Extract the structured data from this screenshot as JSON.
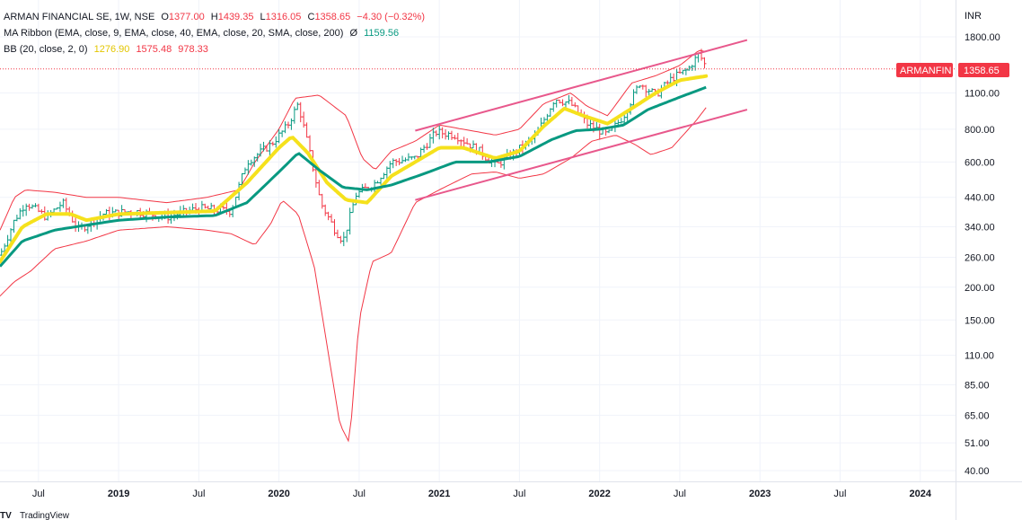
{
  "legend": {
    "line1": {
      "symbol": "ARMAN FINANCIAL SE, 1W, NSE",
      "o_label": "O",
      "o": "1377.00",
      "h_label": "H",
      "h": "1439.35",
      "l_label": "L",
      "l": "1316.05",
      "c_label": "C",
      "c": "1358.65",
      "change": "−4.30 (−0.32%)"
    },
    "line2": {
      "name": "MA Ribbon (EMA, close, 9, EMA, close, 40, EMA, close, 20, SMA, close, 200)",
      "icon": "Ø",
      "value": "1159.56"
    },
    "line3": {
      "name": "BB (20, close, 2, 0)",
      "basis": "1276.90",
      "upper": "1575.48",
      "lower": "978.33"
    }
  },
  "currency": "INR",
  "badge": {
    "ticker": "ARMANFIN",
    "price": "1358.65"
  },
  "colors": {
    "up": "#089981",
    "down": "#f23645",
    "ema9": "#f5e11c",
    "ema40": "#089981",
    "bb": "#f23645",
    "channel": "#e8588c",
    "axis_text": "#131722",
    "badge": "#f23645"
  },
  "footer": {
    "logo": "TV",
    "text": "TradingView"
  },
  "chart_data": {
    "type": "line",
    "title": "ARMAN FINANCIAL SE, 1W, NSE",
    "y_scale": "log",
    "ylim": [
      36,
      2100
    ],
    "y_ticks": [
      {
        "v": 1800,
        "label": "1800.00"
      },
      {
        "v": 1100,
        "label": "1100.00"
      },
      {
        "v": 800,
        "label": "800.00"
      },
      {
        "v": 600,
        "label": "600.00"
      },
      {
        "v": 440,
        "label": "440.00"
      },
      {
        "v": 340,
        "label": "340.00"
      },
      {
        "v": 260,
        "label": "260.00"
      },
      {
        "v": 200,
        "label": "200.00"
      },
      {
        "v": 150,
        "label": "150.00"
      },
      {
        "v": 110,
        "label": "110.00"
      },
      {
        "v": 85,
        "label": "85.00"
      },
      {
        "v": 65,
        "label": "65.00"
      },
      {
        "v": 51,
        "label": "51.00"
      },
      {
        "v": 40,
        "label": "40.00"
      }
    ],
    "xlim": [
      2018.26,
      2024.22
    ],
    "x_ticks": [
      {
        "t": 2018.5,
        "label": "Jul",
        "bold": false
      },
      {
        "t": 2019.0,
        "label": "2019",
        "bold": true
      },
      {
        "t": 2019.5,
        "label": "Jul",
        "bold": false
      },
      {
        "t": 2020.0,
        "label": "2020",
        "bold": true
      },
      {
        "t": 2020.5,
        "label": "Jul",
        "bold": false
      },
      {
        "t": 2021.0,
        "label": "2021",
        "bold": true
      },
      {
        "t": 2021.5,
        "label": "Jul",
        "bold": false
      },
      {
        "t": 2022.0,
        "label": "2022",
        "bold": true
      },
      {
        "t": 2022.5,
        "label": "Jul",
        "bold": false
      },
      {
        "t": 2023.0,
        "label": "2023",
        "bold": true
      },
      {
        "t": 2023.5,
        "label": "Jul",
        "bold": false
      },
      {
        "t": 2024.0,
        "label": "2024",
        "bold": true
      }
    ],
    "last_close": 1358.65,
    "price_keypoints": [
      {
        "t": 2018.26,
        "p": 265
      },
      {
        "t": 2018.35,
        "p": 360
      },
      {
        "t": 2018.42,
        "p": 420
      },
      {
        "t": 2018.55,
        "p": 370
      },
      {
        "t": 2018.65,
        "p": 420
      },
      {
        "t": 2018.75,
        "p": 330
      },
      {
        "t": 2018.9,
        "p": 380
      },
      {
        "t": 2019.1,
        "p": 390
      },
      {
        "t": 2019.3,
        "p": 370
      },
      {
        "t": 2019.5,
        "p": 400
      },
      {
        "t": 2019.7,
        "p": 390
      },
      {
        "t": 2019.8,
        "p": 600
      },
      {
        "t": 2019.95,
        "p": 700
      },
      {
        "t": 2020.05,
        "p": 820
      },
      {
        "t": 2020.12,
        "p": 1000
      },
      {
        "t": 2020.18,
        "p": 700
      },
      {
        "t": 2020.26,
        "p": 420
      },
      {
        "t": 2020.35,
        "p": 330
      },
      {
        "t": 2020.4,
        "p": 300
      },
      {
        "t": 2020.48,
        "p": 450
      },
      {
        "t": 2020.6,
        "p": 500
      },
      {
        "t": 2020.7,
        "p": 600
      },
      {
        "t": 2020.85,
        "p": 620
      },
      {
        "t": 2020.98,
        "p": 780
      },
      {
        "t": 2021.1,
        "p": 760
      },
      {
        "t": 2021.25,
        "p": 660
      },
      {
        "t": 2021.35,
        "p": 580
      },
      {
        "t": 2021.45,
        "p": 640
      },
      {
        "t": 2021.6,
        "p": 750
      },
      {
        "t": 2021.72,
        "p": 1050
      },
      {
        "t": 2021.82,
        "p": 1000
      },
      {
        "t": 2021.92,
        "p": 840
      },
      {
        "t": 2022.05,
        "p": 760
      },
      {
        "t": 2022.15,
        "p": 900
      },
      {
        "t": 2022.25,
        "p": 1200
      },
      {
        "t": 2022.35,
        "p": 1080
      },
      {
        "t": 2022.45,
        "p": 1250
      },
      {
        "t": 2022.55,
        "p": 1350
      },
      {
        "t": 2022.62,
        "p": 1550
      },
      {
        "t": 2022.67,
        "p": 1358.65
      }
    ],
    "bb_keypoints": {
      "upper": [
        {
          "t": 2018.26,
          "p": 330
        },
        {
          "t": 2018.35,
          "p": 440
        },
        {
          "t": 2018.42,
          "p": 470
        },
        {
          "t": 2018.6,
          "p": 460
        },
        {
          "t": 2018.8,
          "p": 440
        },
        {
          "t": 2019.0,
          "p": 440
        },
        {
          "t": 2019.3,
          "p": 420
        },
        {
          "t": 2019.55,
          "p": 440
        },
        {
          "t": 2019.75,
          "p": 470
        },
        {
          "t": 2019.85,
          "p": 600
        },
        {
          "t": 2020.0,
          "p": 800
        },
        {
          "t": 2020.1,
          "p": 1050
        },
        {
          "t": 2020.25,
          "p": 1080
        },
        {
          "t": 2020.42,
          "p": 900
        },
        {
          "t": 2020.52,
          "p": 620
        },
        {
          "t": 2020.6,
          "p": 560
        },
        {
          "t": 2020.7,
          "p": 660
        },
        {
          "t": 2020.85,
          "p": 720
        },
        {
          "t": 2021.0,
          "p": 830
        },
        {
          "t": 2021.2,
          "p": 790
        },
        {
          "t": 2021.35,
          "p": 760
        },
        {
          "t": 2021.5,
          "p": 800
        },
        {
          "t": 2021.65,
          "p": 1000
        },
        {
          "t": 2021.82,
          "p": 1100
        },
        {
          "t": 2021.92,
          "p": 980
        },
        {
          "t": 2022.05,
          "p": 900
        },
        {
          "t": 2022.2,
          "p": 1200
        },
        {
          "t": 2022.35,
          "p": 1280
        },
        {
          "t": 2022.5,
          "p": 1400
        },
        {
          "t": 2022.62,
          "p": 1600
        },
        {
          "t": 2022.67,
          "p": 1575.48
        }
      ],
      "lower": [
        {
          "t": 2018.26,
          "p": 185
        },
        {
          "t": 2018.35,
          "p": 210
        },
        {
          "t": 2018.45,
          "p": 230
        },
        {
          "t": 2018.6,
          "p": 280
        },
        {
          "t": 2018.8,
          "p": 300
        },
        {
          "t": 2019.0,
          "p": 330
        },
        {
          "t": 2019.3,
          "p": 340
        },
        {
          "t": 2019.55,
          "p": 330
        },
        {
          "t": 2019.7,
          "p": 320
        },
        {
          "t": 2019.85,
          "p": 290
        },
        {
          "t": 2019.95,
          "p": 350
        },
        {
          "t": 2020.02,
          "p": 430
        },
        {
          "t": 2020.12,
          "p": 380
        },
        {
          "t": 2020.22,
          "p": 240
        },
        {
          "t": 2020.3,
          "p": 120
        },
        {
          "t": 2020.38,
          "p": 60
        },
        {
          "t": 2020.44,
          "p": 51
        },
        {
          "t": 2020.5,
          "p": 150
        },
        {
          "t": 2020.58,
          "p": 250
        },
        {
          "t": 2020.7,
          "p": 270
        },
        {
          "t": 2020.85,
          "p": 420
        },
        {
          "t": 2021.0,
          "p": 470
        },
        {
          "t": 2021.2,
          "p": 540
        },
        {
          "t": 2021.35,
          "p": 550
        },
        {
          "t": 2021.5,
          "p": 520
        },
        {
          "t": 2021.65,
          "p": 540
        },
        {
          "t": 2021.82,
          "p": 620
        },
        {
          "t": 2021.95,
          "p": 720
        },
        {
          "t": 2022.1,
          "p": 760
        },
        {
          "t": 2022.22,
          "p": 700
        },
        {
          "t": 2022.32,
          "p": 640
        },
        {
          "t": 2022.45,
          "p": 680
        },
        {
          "t": 2022.6,
          "p": 860
        },
        {
          "t": 2022.67,
          "p": 978.33
        }
      ]
    },
    "ema40_keypoints": [
      {
        "t": 2018.26,
        "p": 240
      },
      {
        "t": 2018.4,
        "p": 300
      },
      {
        "t": 2018.6,
        "p": 330
      },
      {
        "t": 2018.8,
        "p": 345
      },
      {
        "t": 2019.0,
        "p": 360
      },
      {
        "t": 2019.3,
        "p": 370
      },
      {
        "t": 2019.6,
        "p": 375
      },
      {
        "t": 2019.8,
        "p": 420
      },
      {
        "t": 2020.0,
        "p": 550
      },
      {
        "t": 2020.12,
        "p": 650
      },
      {
        "t": 2020.25,
        "p": 560
      },
      {
        "t": 2020.4,
        "p": 480
      },
      {
        "t": 2020.55,
        "p": 470
      },
      {
        "t": 2020.7,
        "p": 490
      },
      {
        "t": 2020.9,
        "p": 540
      },
      {
        "t": 2021.1,
        "p": 600
      },
      {
        "t": 2021.3,
        "p": 600
      },
      {
        "t": 2021.5,
        "p": 630
      },
      {
        "t": 2021.7,
        "p": 730
      },
      {
        "t": 2021.85,
        "p": 790
      },
      {
        "t": 2022.0,
        "p": 800
      },
      {
        "t": 2022.15,
        "p": 830
      },
      {
        "t": 2022.3,
        "p": 950
      },
      {
        "t": 2022.5,
        "p": 1060
      },
      {
        "t": 2022.67,
        "p": 1159.56
      }
    ],
    "ema9_keypoints": [
      {
        "t": 2018.26,
        "p": 250
      },
      {
        "t": 2018.4,
        "p": 340
      },
      {
        "t": 2018.55,
        "p": 380
      },
      {
        "t": 2018.7,
        "p": 380
      },
      {
        "t": 2018.8,
        "p": 360
      },
      {
        "t": 2019.0,
        "p": 380
      },
      {
        "t": 2019.3,
        "p": 385
      },
      {
        "t": 2019.6,
        "p": 390
      },
      {
        "t": 2019.8,
        "p": 500
      },
      {
        "t": 2020.0,
        "p": 680
      },
      {
        "t": 2020.08,
        "p": 750
      },
      {
        "t": 2020.18,
        "p": 650
      },
      {
        "t": 2020.3,
        "p": 500
      },
      {
        "t": 2020.42,
        "p": 430
      },
      {
        "t": 2020.55,
        "p": 420
      },
      {
        "t": 2020.7,
        "p": 530
      },
      {
        "t": 2020.85,
        "p": 600
      },
      {
        "t": 2021.0,
        "p": 680
      },
      {
        "t": 2021.15,
        "p": 680
      },
      {
        "t": 2021.35,
        "p": 620
      },
      {
        "t": 2021.5,
        "p": 660
      },
      {
        "t": 2021.65,
        "p": 820
      },
      {
        "t": 2021.78,
        "p": 960
      },
      {
        "t": 2021.9,
        "p": 900
      },
      {
        "t": 2022.05,
        "p": 840
      },
      {
        "t": 2022.2,
        "p": 960
      },
      {
        "t": 2022.35,
        "p": 1100
      },
      {
        "t": 2022.5,
        "p": 1230
      },
      {
        "t": 2022.67,
        "p": 1276.9
      }
    ],
    "channel_lines": [
      {
        "t1": 2020.85,
        "p1": 790,
        "t2": 2022.92,
        "p2": 1750
      },
      {
        "t1": 2020.85,
        "p1": 430,
        "t2": 2022.92,
        "p2": 950
      }
    ]
  }
}
